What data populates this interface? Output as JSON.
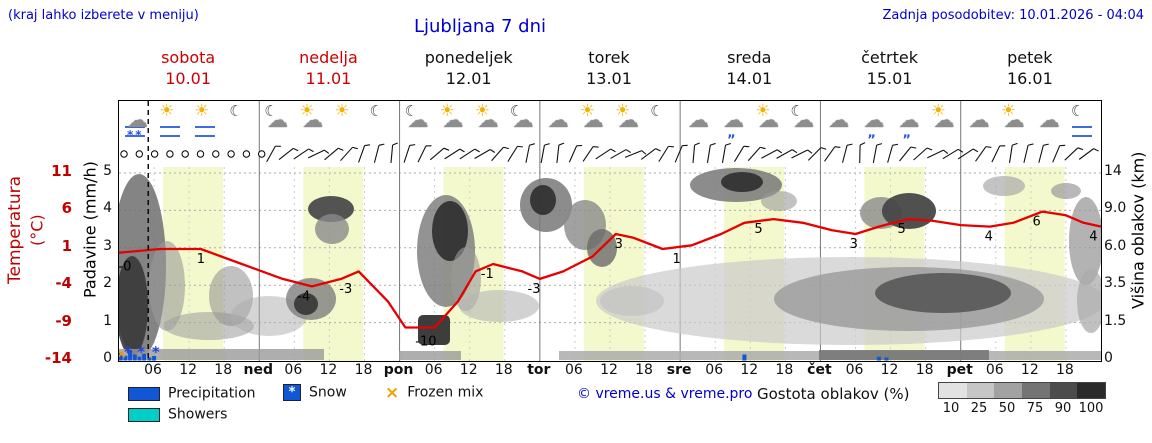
{
  "header": {
    "left_note": "(kraj lahko izberete v meniju)",
    "title": "Ljubljana 7 dni",
    "last_update": "Zadnja posodobitev: 10.01.2026 - 04:04"
  },
  "days": [
    {
      "name": "sobota",
      "date": "10.01",
      "accent": true
    },
    {
      "name": "nedelja",
      "date": "11.01",
      "accent": true
    },
    {
      "name": "ponedeljek",
      "date": "12.01",
      "accent": false
    },
    {
      "name": "torek",
      "date": "13.01",
      "accent": false
    },
    {
      "name": "sreda",
      "date": "14.01",
      "accent": false
    },
    {
      "name": "četrtek",
      "date": "15.01",
      "accent": false
    },
    {
      "name": "petek",
      "date": "16.01",
      "accent": false
    }
  ],
  "axes": {
    "temperature": {
      "title": "Temperatura",
      "unit": "(°C)",
      "ticks": [
        "11",
        "6",
        "1",
        "-4",
        "-9",
        "-14"
      ]
    },
    "precipitation": {
      "title": "Padavine (mm/h)",
      "ticks": [
        "5",
        "4",
        "3",
        "2",
        "1",
        "0"
      ]
    },
    "cloud_height": {
      "title": "Višina oblakov (km)",
      "ticks": [
        "14",
        "9.0",
        "6.0",
        "3.5",
        "1.5",
        "0"
      ]
    },
    "time": {
      "ticks": [
        "06",
        "12",
        "18",
        "ned",
        "06",
        "12",
        "18",
        "pon",
        "06",
        "12",
        "18",
        "tor",
        "06",
        "12",
        "18",
        "sre",
        "06",
        "12",
        "18",
        "čet",
        "06",
        "12",
        "18",
        "pet",
        "06",
        "12",
        "18"
      ]
    }
  },
  "icons": [
    "snow-fog-cloud-icon",
    "sun-fog-icon",
    "sun-fog-icon",
    "moon-icon",
    "moon-cloud-icon",
    "sun-cloud-icon",
    "sun-icon",
    "moon-icon",
    "moon-cloud-icon",
    "sun-cloud-icon",
    "sun-cloud-icon",
    "moon-cloud-icon",
    "cloud-icon",
    "sun-cloud-icon",
    "sun-cloud-icon",
    "moon-icon",
    "cloud-icon",
    "rain-cloud-icon",
    "sun-cloud-icon",
    "moon-cloud-icon",
    "cloud-icon",
    "rain-cloud-icon",
    "rain-cloud-icon",
    "sun-cloud-icon",
    "cloud-icon",
    "sun-cloud-icon",
    "cloud-icon",
    "moon-fog-icon"
  ],
  "icon_glyphs": {
    "sun": "☀",
    "cloud": "☁",
    "moon": "☾",
    "snow": "**",
    "rain": "„",
    "fog": ""
  },
  "legend": {
    "items": [
      {
        "label": "Precipitation",
        "color": "#1056d6",
        "type": "bar"
      },
      {
        "label": "Snow",
        "color": "#1056d6",
        "type": "star"
      },
      {
        "label": "Frozen mix",
        "color": "#f0a000",
        "type": "x"
      },
      {
        "label": "Showers",
        "color": "#00cfc8",
        "type": "bar"
      }
    ],
    "copyright": "© vreme.us & vreme.pro",
    "cloud_scale_title": "Gostota oblakov (%)",
    "cloud_scale": {
      "values": [
        "10",
        "25",
        "50",
        "75",
        "90",
        "100"
      ],
      "colors": [
        "#e2e2e2",
        "#c6c6c6",
        "#a2a2a2",
        "#747474",
        "#4c4c4c",
        "#2a2a2a"
      ]
    }
  },
  "chart_data": {
    "type": "line",
    "title": "Ljubljana 7 dni",
    "x_range_hours": [
      0,
      168
    ],
    "xlabel": "",
    "ylabel_left": "Temperatura (°C) / Padavine (mm/h)",
    "ylabel_right": "Višina oblakov (km)",
    "temperature_ylim": [
      -14,
      11
    ],
    "precipitation_ylim": [
      0,
      5
    ],
    "current_time_hour": 5,
    "daylight_bands": true,
    "temperature_curve": {
      "hours": [
        0,
        7,
        14,
        21,
        28,
        33,
        38,
        41,
        46,
        49,
        54,
        58,
        61,
        64,
        69,
        72,
        76,
        81,
        85,
        88,
        93,
        98,
        103,
        107,
        112,
        117,
        122,
        126,
        130,
        135,
        139,
        144,
        149,
        153,
        158,
        162,
        165,
        168
      ],
      "values": [
        0.5,
        1,
        1,
        -1,
        -3,
        -4,
        -3,
        -2,
        -6,
        -9.5,
        -9.5,
        -6,
        -2,
        -1,
        -2,
        -3,
        -2,
        0,
        3,
        2.5,
        1,
        1.5,
        3,
        4.5,
        5,
        4.5,
        3.5,
        3,
        4,
        5,
        4.8,
        4.2,
        4,
        4.5,
        6,
        5.5,
        4.5,
        4
      ]
    },
    "temperature_labels": [
      {
        "hour": 1,
        "text": "-0"
      },
      {
        "hour": 14,
        "text": "1"
      },
      {
        "hour": 31.6,
        "text": "-4"
      },
      {
        "hour": 38.8,
        "text": "-3"
      },
      {
        "hour": 52.5,
        "text": "-10"
      },
      {
        "hour": 63,
        "text": "-1"
      },
      {
        "hour": 71,
        "text": "-3"
      },
      {
        "hour": 85.5,
        "text": "3"
      },
      {
        "hour": 95.4,
        "text": "1"
      },
      {
        "hour": 109.4,
        "text": "5"
      },
      {
        "hour": 125.7,
        "text": "3"
      },
      {
        "hour": 133.9,
        "text": "5"
      },
      {
        "hour": 148.8,
        "text": "4"
      },
      {
        "hour": 157,
        "text": "6"
      },
      {
        "hour": 166.7,
        "text": "4"
      }
    ],
    "precipitation_bars": [
      {
        "hour": 0.3,
        "mm": 0.22
      },
      {
        "hour": 1.1,
        "mm": 0.13
      },
      {
        "hour": 1.9,
        "mm": 0.28
      },
      {
        "hour": 2.7,
        "mm": 0.16
      },
      {
        "hour": 3.5,
        "mm": 0.1
      },
      {
        "hour": 4.3,
        "mm": 0.18
      },
      {
        "hour": 5.2,
        "mm": 0.08
      },
      {
        "hour": 6.0,
        "mm": 0.12
      },
      {
        "hour": 107,
        "mm": 0.16
      },
      {
        "hour": 130,
        "mm": 0.1
      },
      {
        "hour": 131.3,
        "mm": 0.08
      }
    ],
    "snow_marker_hours": [
      1.5,
      3.8,
      6.3
    ],
    "frozen_mix_marker_hours": [
      0.4
    ],
    "cloud_density_units": "%"
  }
}
